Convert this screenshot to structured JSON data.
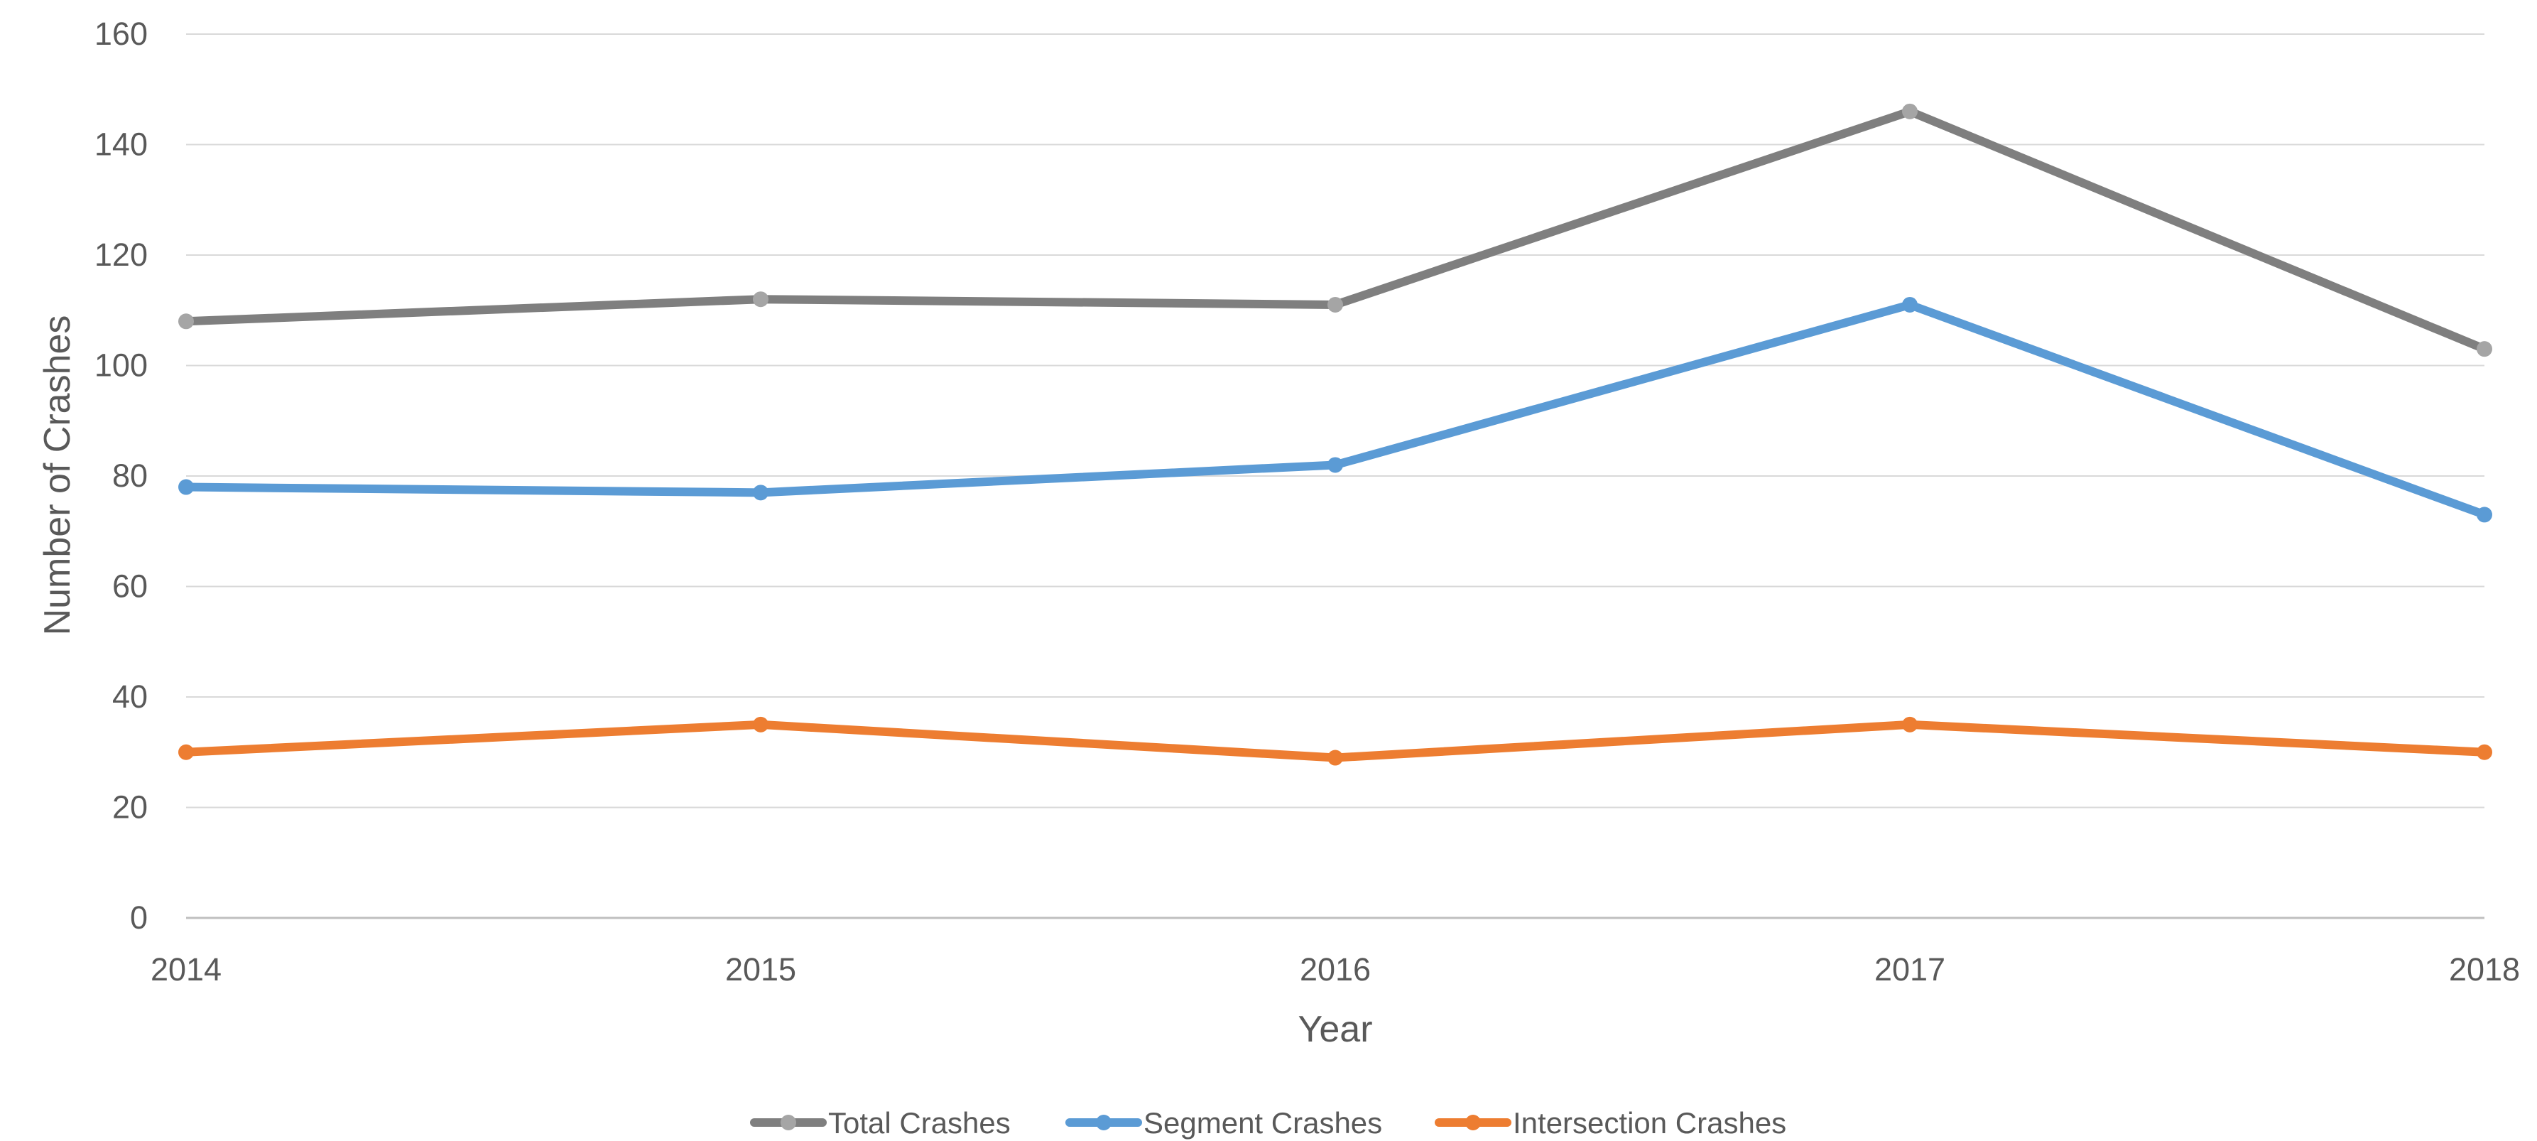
{
  "chart_data": {
    "type": "line",
    "title": "",
    "xlabel": "Year",
    "ylabel": "Number of Crashes",
    "categories": [
      "2014",
      "2015",
      "2016",
      "2017",
      "2018"
    ],
    "ylim": [
      0,
      160
    ],
    "yticks": [
      0,
      20,
      40,
      60,
      80,
      100,
      120,
      140,
      160
    ],
    "grid": true,
    "legend_position": "bottom",
    "series": [
      {
        "name": "Total Crashes",
        "color": "#7f7f7f",
        "marker_color": "#a5a5a5",
        "values": [
          108,
          112,
          111,
          146,
          103
        ]
      },
      {
        "name": "Segment Crashes",
        "color": "#5b9bd5",
        "marker_color": "#5b9bd5",
        "values": [
          78,
          77,
          82,
          111,
          73
        ]
      },
      {
        "name": "Intersection Crashes",
        "color": "#ed7d31",
        "marker_color": "#ed7d31",
        "values": [
          30,
          35,
          29,
          35,
          30
        ]
      }
    ]
  }
}
